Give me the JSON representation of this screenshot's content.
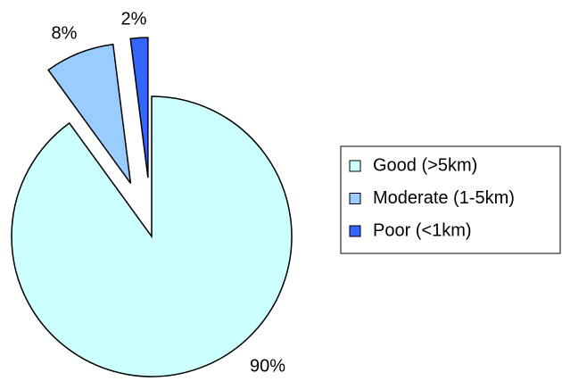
{
  "chart_data": {
    "type": "pie",
    "categories": [
      "Good (>5km)",
      "Moderate (1-5km)",
      "Poor (<1km)"
    ],
    "values": [
      90,
      8,
      2
    ],
    "value_labels": [
      "90%",
      "8%",
      "2%"
    ],
    "colors": [
      "#ccffff",
      "#99ccff",
      "#3366ff"
    ],
    "legend": "right"
  }
}
